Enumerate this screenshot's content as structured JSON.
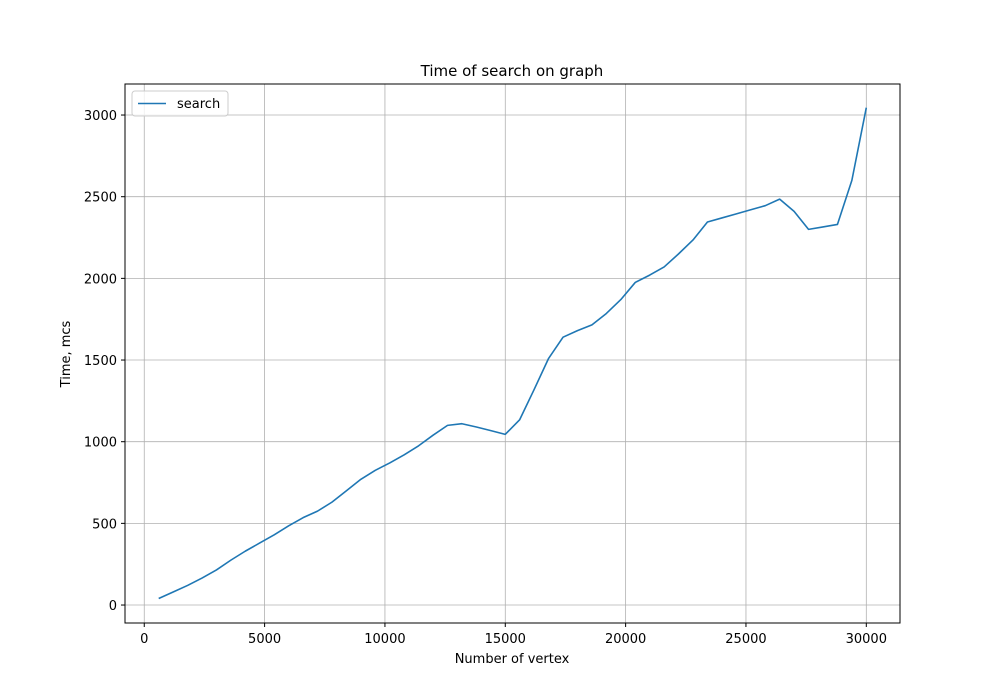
{
  "chart_data": {
    "type": "line",
    "title": "Time of search on graph",
    "xlabel": "Number of vertex",
    "ylabel": "Time, mcs",
    "xlim": [
      -800,
      31400
    ],
    "ylim": [
      -110,
      3190
    ],
    "xticks": [
      0,
      5000,
      10000,
      15000,
      20000,
      25000,
      30000
    ],
    "yticks": [
      0,
      500,
      1000,
      1500,
      2000,
      2500,
      3000
    ],
    "grid": true,
    "legend_position": "upper-left",
    "series": [
      {
        "name": "search",
        "color": "#1f77b4",
        "x": [
          600,
          1200,
          1800,
          2400,
          3000,
          3600,
          4200,
          4800,
          5400,
          6000,
          6600,
          7200,
          7800,
          8400,
          9000,
          9600,
          10200,
          10800,
          11400,
          12000,
          12600,
          13200,
          13800,
          14400,
          15000,
          15600,
          16200,
          16800,
          17400,
          18000,
          18600,
          19200,
          19800,
          20400,
          21000,
          21600,
          22200,
          22800,
          23400,
          24000,
          24600,
          25200,
          25800,
          26400,
          27000,
          27600,
          28200,
          28800,
          29400,
          30000
        ],
        "y": [
          40,
          80,
          120,
          165,
          215,
          275,
          330,
          380,
          430,
          485,
          535,
          575,
          630,
          700,
          770,
          825,
          870,
          920,
          975,
          1040,
          1100,
          1110,
          1090,
          1068,
          1045,
          1135,
          1320,
          1510,
          1640,
          1680,
          1715,
          1785,
          1870,
          1975,
          2020,
          2070,
          2150,
          2235,
          2345,
          2370,
          2395,
          2420,
          2445,
          2485,
          2410,
          2300,
          2315,
          2330,
          2600,
          3045
        ]
      }
    ]
  }
}
